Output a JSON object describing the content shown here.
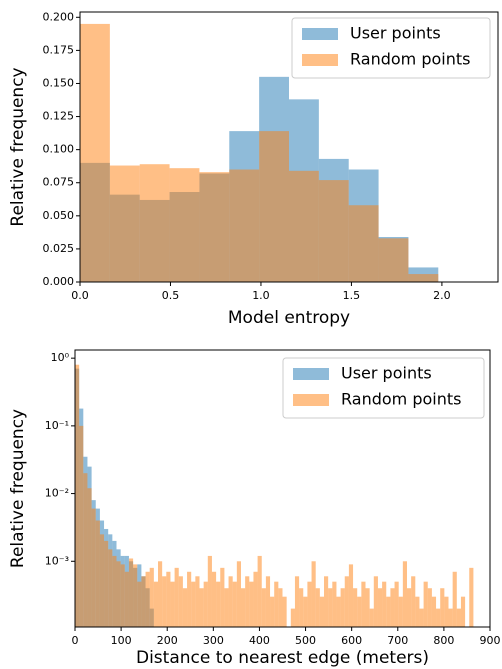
{
  "chart_data": [
    {
      "type": "histogram",
      "xlabel": "Model entropy",
      "ylabel": "Relative frequency",
      "bins": [
        0,
        0.165,
        0.33,
        0.495,
        0.66,
        0.825,
        0.99,
        1.155,
        1.32,
        1.485,
        1.65,
        1.815,
        1.98
      ],
      "series": [
        {
          "name": "User points",
          "color": "#1f77b4",
          "values": [
            0.09,
            0.066,
            0.062,
            0.068,
            0.082,
            0.114,
            0.155,
            0.138,
            0.093,
            0.085,
            0.034,
            0.011
          ]
        },
        {
          "name": "Random points",
          "color": "#ff7f0e",
          "values": [
            0.195,
            0.088,
            0.089,
            0.086,
            0.083,
            0.085,
            0.114,
            0.084,
            0.077,
            0.058,
            0.033,
            0.006
          ]
        }
      ],
      "alpha": 0.5,
      "legend": "upper right",
      "log_y": false,
      "xlim": [
        0,
        2.31
      ],
      "ylim": [
        0,
        0.204
      ],
      "xticks": [
        {
          "value": 0,
          "label": "0.0"
        },
        {
          "value": 0.5,
          "label": "0.5"
        },
        {
          "value": 1,
          "label": "1.0"
        },
        {
          "value": 1.5,
          "label": "1.5"
        },
        {
          "value": 2,
          "label": "2.0"
        }
      ],
      "yticks": [
        {
          "value": 0,
          "label": "0.000"
        },
        {
          "value": 0.025,
          "label": "0.025"
        },
        {
          "value": 0.05,
          "label": "0.050"
        },
        {
          "value": 0.075,
          "label": "0.075"
        },
        {
          "value": 0.1,
          "label": "0.100"
        },
        {
          "value": 0.125,
          "label": "0.125"
        },
        {
          "value": 0.15,
          "label": "0.150"
        },
        {
          "value": 0.175,
          "label": "0.175"
        },
        {
          "value": 0.2,
          "label": "0.200"
        }
      ]
    },
    {
      "type": "histogram",
      "xlabel": "Distance to nearest edge (meters)",
      "ylabel": "Relative frequency",
      "bins": [
        0,
        9,
        18,
        27,
        36,
        45,
        54,
        63,
        72,
        81,
        90,
        99,
        108,
        117,
        126,
        135,
        144,
        153,
        162,
        171,
        180,
        189,
        198,
        207,
        216,
        225,
        234,
        243,
        252,
        261,
        270,
        279,
        288,
        297,
        306,
        315,
        324,
        333,
        342,
        351,
        360,
        369,
        378,
        387,
        396,
        405,
        414,
        423,
        432,
        441,
        450,
        459,
        468,
        477,
        486,
        495,
        504,
        513,
        522,
        531,
        540,
        549,
        558,
        567,
        576,
        585,
        594,
        603,
        612,
        621,
        630,
        639,
        648,
        657,
        666,
        675,
        684,
        693,
        702,
        711,
        720,
        729,
        738,
        747,
        756,
        765,
        774,
        783,
        792,
        801,
        810,
        819,
        828,
        837,
        846,
        855,
        864
      ],
      "series": [
        {
          "name": "User points",
          "color": "#1f77b4",
          "values": [
            0.7,
            0.18,
            0.035,
            0.025,
            0.008,
            0.006,
            0.004,
            0.003,
            0.0025,
            0.002,
            0.0015,
            0.0012,
            0.0012,
            0.001,
            0.0008,
            0.0009,
            0.0006,
            0.0004,
            0.0002,
            0,
            0,
            0,
            0,
            0,
            0,
            0,
            0,
            0,
            0,
            0,
            0,
            0,
            0,
            0,
            0,
            0,
            0,
            0,
            0,
            0,
            0,
            0,
            0,
            0,
            0,
            0,
            0,
            0,
            0,
            0,
            0,
            0,
            0,
            0,
            0,
            0,
            0,
            0,
            0,
            0,
            0,
            0,
            0,
            0,
            0,
            0,
            0,
            0,
            0,
            0,
            0,
            0,
            0,
            0,
            0,
            0,
            0,
            0,
            0,
            0,
            0,
            0,
            0,
            0,
            0,
            0,
            0,
            0,
            0,
            0,
            0,
            0,
            0,
            0,
            0,
            0
          ]
        },
        {
          "name": "Random points",
          "color": "#ff7f0e",
          "values": [
            0.8,
            0.1,
            0.02,
            0.012,
            0.006,
            0.004,
            0.0025,
            0.002,
            0.0015,
            0.0012,
            0.001,
            0.0009,
            0.0007,
            0.0011,
            0.0009,
            0.0005,
            0.0006,
            0.0007,
            0.0008,
            0.0005,
            0.001,
            0.0006,
            0.0007,
            0.0005,
            0.0008,
            0.0006,
            0.0004,
            0.0007,
            0.0005,
            0.0006,
            0.0004,
            0.0005,
            0.0012,
            0.0007,
            0.0005,
            0.0008,
            0.0004,
            0.0006,
            0.0005,
            0.001,
            0.0004,
            0.0006,
            0.0005,
            0.0007,
            0.0012,
            0.0004,
            0.0006,
            0.0003,
            0.0005,
            0.0004,
            0.0003,
            0,
            0.0002,
            0.0006,
            0.0004,
            0.0003,
            0.0005,
            0.001,
            0.0004,
            0.0003,
            0.0006,
            0.0004,
            0.0005,
            0.0003,
            0.0004,
            0.0006,
            0.0009,
            0.0004,
            0.0003,
            0.0005,
            0.0004,
            0.0002,
            0.0006,
            0.0004,
            0.0005,
            0.0003,
            0.0004,
            0.0005,
            0.0003,
            0.001,
            0.0004,
            0.0006,
            0.0003,
            0.0002,
            0.0005,
            0.0004,
            0.0003,
            0.0002,
            0.0004,
            0.0003,
            0.0002,
            0.0007,
            0.0002,
            0.0003,
            0,
            0.0008
          ]
        }
      ],
      "alpha": 0.5,
      "legend": "upper right",
      "log_y": true,
      "xlim": [
        0,
        900
      ],
      "ylim": [
        0.000107,
        1.32
      ],
      "xticks": [
        0,
        100,
        200,
        300,
        400,
        500,
        600,
        700,
        800,
        900
      ],
      "yticks": [
        {
          "value": 1,
          "label": "10⁰"
        },
        {
          "value": 0.1,
          "label": "10⁻¹"
        },
        {
          "value": 0.01,
          "label": "10⁻²"
        },
        {
          "value": 0.001,
          "label": "10⁻³"
        }
      ]
    }
  ]
}
